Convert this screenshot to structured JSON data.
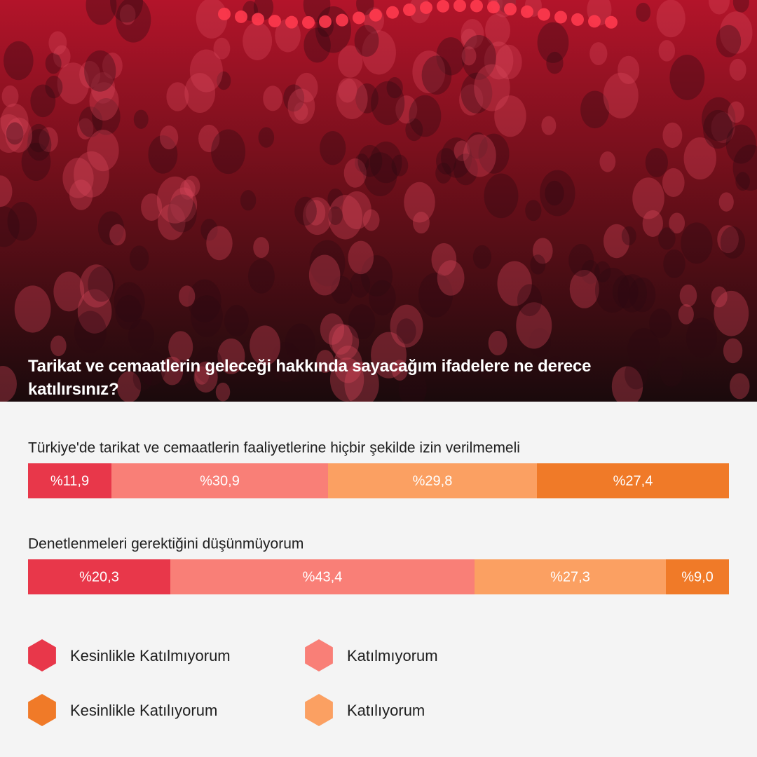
{
  "chart_data": {
    "type": "stacked-bar-100",
    "title": "Tarikat ve cemaatlerin geleceği hakkında sayacağım ifadelere ne derece katılırsınız?",
    "categories": [
      "Türkiye'de tarikat ve cemaatlerin faaliyetlerine hiçbir şekilde izin verilmemeli",
      "Denetlenmeleri gerektiğini düşünmüyorum"
    ],
    "series": [
      {
        "name": "Kesinlikle Katılmıyorum",
        "color": "#e8374a",
        "values": [
          11.9,
          20.3
        ],
        "value_labels": [
          "%11,9",
          "%20,3"
        ]
      },
      {
        "name": "Katılmıyorum",
        "color": "#f97f77",
        "values": [
          30.9,
          43.4
        ],
        "value_labels": [
          "%30,9",
          "%43,4"
        ]
      },
      {
        "name": "Katılıyorum",
        "color": "#fba062",
        "values": [
          29.8,
          27.3
        ],
        "value_labels": [
          "%29,8",
          "%27,3"
        ]
      },
      {
        "name": "Kesinlikle Katılıyorum",
        "color": "#f07a28",
        "values": [
          27.4,
          9.0
        ],
        "value_labels": [
          "%27,4",
          "%9,0"
        ]
      }
    ]
  }
}
